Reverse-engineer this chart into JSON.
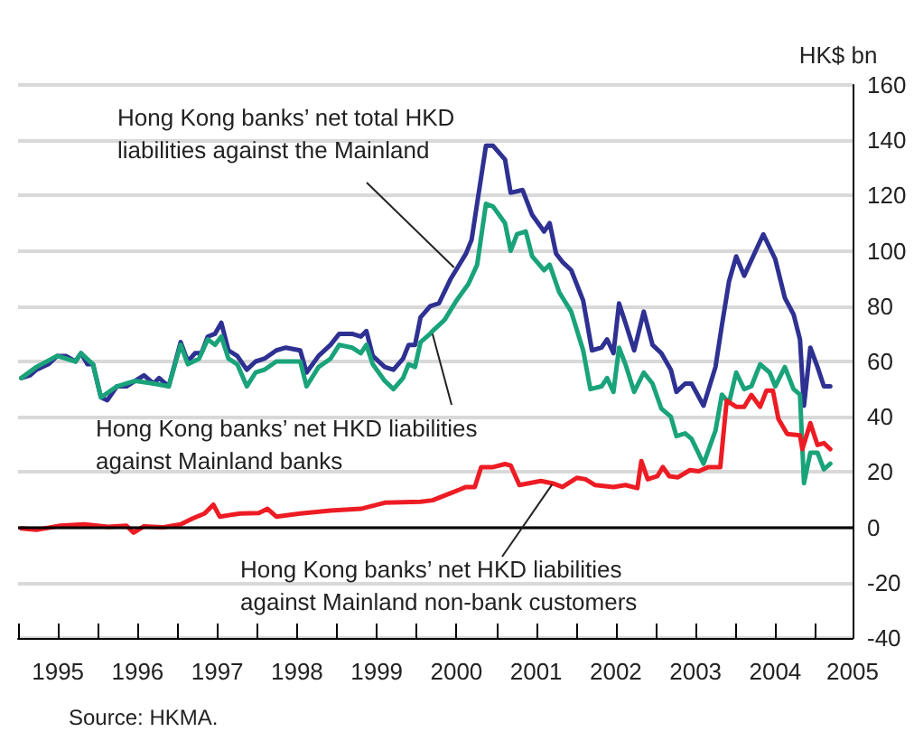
{
  "chart_data": {
    "type": "line",
    "ylabel": "HK$ bn",
    "xlim": [
      1995,
      2005.47
    ],
    "xticks": [
      {
        "value": 1995,
        "label": null
      },
      {
        "value": 1995.5,
        "label": "1995"
      },
      {
        "value": 1996,
        "label": null
      },
      {
        "value": 1996.5,
        "label": "1996"
      },
      {
        "value": 1997,
        "label": null
      },
      {
        "value": 1997.5,
        "label": "1997"
      },
      {
        "value": 1998,
        "label": null
      },
      {
        "value": 1998.5,
        "label": "1998"
      },
      {
        "value": 1999,
        "label": null
      },
      {
        "value": 1999.5,
        "label": "1999"
      },
      {
        "value": 2000,
        "label": null
      },
      {
        "value": 2000.5,
        "label": "2000"
      },
      {
        "value": 2001,
        "label": null
      },
      {
        "value": 2001.5,
        "label": "2001"
      },
      {
        "value": 2002,
        "label": null
      },
      {
        "value": 2002.5,
        "label": "2002"
      },
      {
        "value": 2003,
        "label": null
      },
      {
        "value": 2003.5,
        "label": "2003"
      },
      {
        "value": 2004,
        "label": null
      },
      {
        "value": 2004.5,
        "label": "2004"
      },
      {
        "value": 2005,
        "label": null
      },
      {
        "value": 2005.47,
        "label": "2005"
      }
    ],
    "ylim": [
      -40,
      160
    ],
    "yticks": [
      -40,
      -20,
      0,
      20,
      40,
      60,
      80,
      100,
      120,
      140,
      160
    ],
    "grid": "y",
    "marker": "none",
    "line_style": "solid",
    "ref_lines": [
      {
        "axis": "y",
        "value": 0,
        "label": null,
        "color": "#000000"
      }
    ],
    "series": [
      {
        "color": "#2e3192",
        "x": [
          1995.04,
          1995.15,
          1995.23,
          1995.38,
          1995.49,
          1995.6,
          1995.72,
          1995.79,
          1995.87,
          1995.94,
          1996.04,
          1996.12,
          1996.24,
          1996.36,
          1996.47,
          1996.58,
          1996.7,
          1996.77,
          1996.89,
          1997.04,
          1997.13,
          1997.22,
          1997.3,
          1997.38,
          1997.47,
          1997.55,
          1997.64,
          1997.75,
          1997.87,
          1997.98,
          1998.09,
          1998.24,
          1998.36,
          1998.54,
          1998.62,
          1998.77,
          1998.92,
          1999.03,
          1999.19,
          1999.3,
          1999.37,
          1999.45,
          1999.6,
          1999.71,
          1999.83,
          1999.9,
          1999.98,
          2000.05,
          2000.17,
          2000.28,
          2000.43,
          2000.62,
          2000.69,
          2000.87,
          2000.96,
          2001.11,
          2001.18,
          2001.33,
          2001.45,
          2001.6,
          2001.67,
          2001.75,
          2001.83,
          2001.94,
          2002.09,
          2002.2,
          2002.32,
          2002.39,
          2002.47,
          2002.54,
          2002.62,
          2002.73,
          2002.85,
          2002.96,
          2003.07,
          2003.19,
          2003.26,
          2003.37,
          2003.45,
          2003.6,
          2003.75,
          2003.83,
          2003.92,
          2004.01,
          2004.11,
          2004.35,
          2004.5,
          2004.62,
          2004.73,
          2004.81,
          2004.86,
          2004.94,
          2005.03,
          2005.11,
          2005.19
        ],
        "values": [
          54,
          55,
          57,
          59,
          62,
          62,
          60,
          63,
          59,
          59,
          47,
          46,
          51,
          51,
          53,
          55,
          52,
          54,
          51,
          67,
          60,
          63,
          63,
          69,
          70,
          74,
          64,
          62,
          57,
          60,
          61,
          64,
          65,
          64,
          56,
          62,
          66,
          70,
          70,
          69,
          71,
          62,
          58,
          57,
          61,
          66,
          66,
          76,
          80,
          81,
          90,
          99,
          104,
          138,
          138,
          133,
          121,
          122,
          113,
          107,
          110,
          99,
          96,
          93,
          82,
          64,
          65,
          68,
          63,
          81,
          74,
          64,
          78,
          66,
          63,
          57,
          49,
          52,
          52,
          44,
          58,
          73,
          89,
          98,
          91,
          106,
          97,
          83,
          77,
          68,
          44,
          65,
          58,
          51,
          51
        ]
      },
      {
        "color": "#1aa37a",
        "x": [
          1995.04,
          1995.23,
          1995.49,
          1995.72,
          1995.79,
          1995.94,
          1996.04,
          1996.24,
          1996.47,
          1996.7,
          1996.89,
          1997.04,
          1997.13,
          1997.27,
          1997.38,
          1997.47,
          1997.55,
          1997.64,
          1997.75,
          1997.87,
          1997.98,
          1998.09,
          1998.24,
          1998.47,
          1998.54,
          1998.62,
          1998.77,
          1998.92,
          1999.03,
          1999.19,
          1999.3,
          1999.37,
          1999.45,
          1999.6,
          1999.71,
          1999.83,
          1999.9,
          1999.98,
          2000.05,
          2000.17,
          2000.2,
          2000.35,
          2000.5,
          2000.65,
          2000.76,
          2000.87,
          2000.96,
          2001.11,
          2001.18,
          2001.26,
          2001.37,
          2001.45,
          2001.6,
          2001.67,
          2001.79,
          2001.94,
          2002.09,
          2002.18,
          2002.32,
          2002.39,
          2002.47,
          2002.54,
          2002.62,
          2002.73,
          2002.85,
          2002.96,
          2003.07,
          2003.19,
          2003.26,
          2003.37,
          2003.45,
          2003.6,
          2003.75,
          2003.83,
          2003.92,
          2004.01,
          2004.11,
          2004.2,
          2004.31,
          2004.43,
          2004.5,
          2004.62,
          2004.73,
          2004.81,
          2004.86,
          2004.94,
          2005.03,
          2005.11,
          2005.19
        ],
        "values": [
          54,
          58,
          62,
          60,
          63,
          59,
          47,
          51,
          53,
          52,
          51,
          66,
          59,
          61,
          68,
          66,
          69,
          61,
          59,
          51,
          56,
          57,
          60,
          60,
          60,
          51,
          58,
          61,
          66,
          65,
          63,
          66,
          59,
          53,
          50,
          54,
          59,
          58,
          67,
          70,
          71,
          75,
          82,
          88,
          95,
          117,
          116,
          110,
          100,
          106,
          107,
          98,
          93,
          95,
          85,
          78,
          64,
          50,
          51,
          54,
          49,
          65,
          59,
          49,
          56,
          52,
          43,
          40,
          33,
          34,
          32,
          23,
          35,
          48,
          45,
          56,
          50,
          51,
          59,
          56,
          51,
          58,
          50,
          48,
          16,
          27,
          27,
          21,
          23
        ]
      },
      {
        "color": "#ed1c24",
        "x": [
          1995.04,
          1995.23,
          1995.53,
          1995.83,
          1996.13,
          1996.36,
          1996.45,
          1996.58,
          1996.81,
          1997.04,
          1997.19,
          1997.34,
          1997.45,
          1997.53,
          1997.79,
          1998.02,
          1998.13,
          1998.24,
          1998.54,
          1998.92,
          1999.3,
          1999.6,
          2000.05,
          2000.2,
          2000.43,
          2000.62,
          2000.73,
          2000.81,
          2000.96,
          2001.11,
          2001.18,
          2001.29,
          2001.56,
          2001.71,
          2001.83,
          2002.01,
          2002.12,
          2002.24,
          2002.47,
          2002.62,
          2002.77,
          2002.82,
          2002.9,
          2003.02,
          2003.09,
          2003.17,
          2003.28,
          2003.43,
          2003.54,
          2003.66,
          2003.81,
          2003.89,
          2004.01,
          2004.11,
          2004.2,
          2004.31,
          2004.39,
          2004.47,
          2004.54,
          2004.65,
          2004.81,
          2004.84,
          2004.94,
          2005.03,
          2005.11,
          2005.19
        ],
        "values": [
          -0.4,
          -0.9,
          0.6,
          1.1,
          0.2,
          0.6,
          -1.9,
          0.4,
          0,
          1.1,
          3.2,
          5,
          8.2,
          3.9,
          5,
          5.2,
          6.7,
          3.9,
          5,
          6.1,
          6.7,
          8.9,
          9.3,
          9.8,
          12.4,
          14.6,
          14.6,
          21.8,
          21.8,
          22.9,
          22.4,
          15.3,
          16.8,
          15.9,
          14.6,
          17.9,
          17.4,
          15.3,
          14.6,
          15.3,
          14.2,
          24,
          17.4,
          18.5,
          21.8,
          18.5,
          18.1,
          20.7,
          20.3,
          21.8,
          21.8,
          45.8,
          43.6,
          43.6,
          47.9,
          43.6,
          49.5,
          49.5,
          39.2,
          33.8,
          33.3,
          28.3,
          37.7,
          29.8,
          30.5,
          28.3
        ]
      }
    ],
    "annotations": [
      {
        "text": "Hong Kong banks’ net total HKD liabilities against the Mainland",
        "x": 2000.47,
        "y": 94
      },
      {
        "text": "Hong Kong banks’ net HKD liabilities against Mainland banks",
        "x": 2000.2,
        "y": 70
      },
      {
        "text": "Hong Kong banks’ net HKD liabilities against Mainland non-bank customers",
        "x": 2001.7,
        "y": 15.5
      },
      "Source: HKMA."
    ]
  }
}
